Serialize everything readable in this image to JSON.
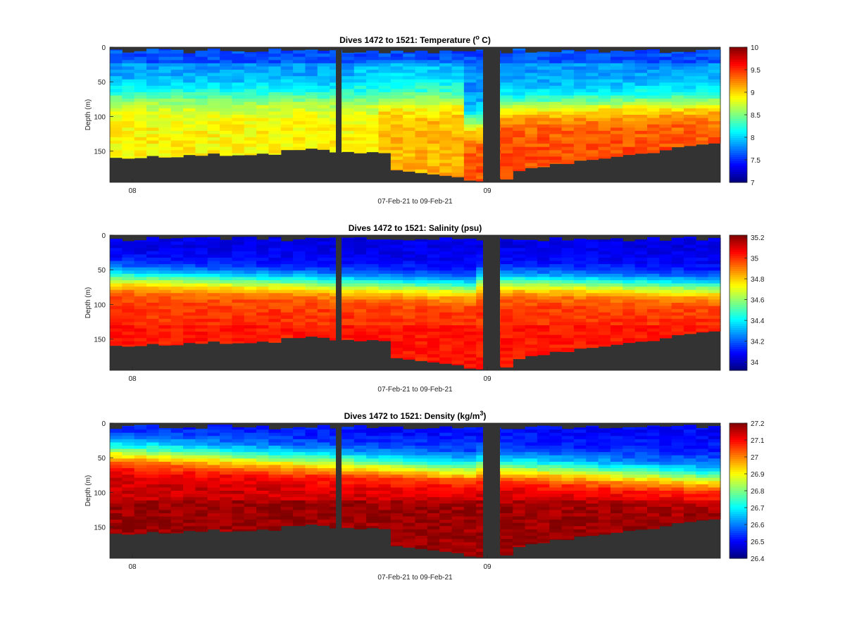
{
  "chart_data": [
    {
      "type": "heatmap",
      "title": "Dives 1472 to 1521: Temperature (",
      "title_sup": "o",
      "title_suffix": " C)",
      "xlabel": "07-Feb-21 to 09-Feb-21",
      "ylabel": "Depth (m)",
      "xtick_labels": [
        "08",
        "09"
      ],
      "yticks": [
        0,
        50,
        100,
        150
      ],
      "ylim": [
        0,
        195
      ],
      "colorbar": {
        "min": 7,
        "max": 10,
        "ticks": [
          "10",
          "9.5",
          "9",
          "8.5",
          "8",
          "7.5",
          "7"
        ]
      },
      "colormap": "jet",
      "no_data_color": "#333333",
      "profile": {
        "surface": 7.8,
        "thermocline_depth_start": 65,
        "thermocline_depth_end": 75,
        "deep": 8.9,
        "deep_second_half": 9.4
      }
    },
    {
      "type": "heatmap",
      "title": "Dives 1472 to 1521: Salinity (psu)",
      "xlabel": "07-Feb-21 to 09-Feb-21",
      "ylabel": "Depth (m)",
      "xtick_labels": [
        "08",
        "09"
      ],
      "yticks": [
        0,
        50,
        100,
        150
      ],
      "ylim": [
        0,
        195
      ],
      "colorbar": {
        "min": 33.92,
        "max": 35.22,
        "ticks": [
          "35.2",
          "35",
          "34.8",
          "34.6",
          "34.4",
          "34.2",
          "34"
        ]
      },
      "colormap": "jet",
      "no_data_color": "#333333",
      "profile": {
        "surface": 34.05,
        "halocline_depth_start": 55,
        "halocline_depth_end": 95,
        "deep": 35.0
      }
    },
    {
      "type": "heatmap",
      "title": "Dives 1472 to 1521: Density (kg/m",
      "title_sup": "3",
      "title_suffix": ")",
      "xlabel": "07-Feb-21 to 09-Feb-21",
      "ylabel": "Depth (m)",
      "xtick_labels": [
        "08",
        "09"
      ],
      "yticks": [
        0,
        50,
        100,
        150
      ],
      "ylim": [
        0,
        195
      ],
      "colorbar": {
        "min": 26.4,
        "max": 27.2,
        "ticks": [
          "27.2",
          "27.1",
          "27",
          "26.9",
          "26.8",
          "26.7",
          "26.6",
          "26.5",
          "26.4"
        ]
      },
      "colormap": "jet",
      "no_data_color": "#333333",
      "profile": {
        "surface": 26.5,
        "pycnocline_depth_start": 45,
        "pycnocline_depth_end": 90,
        "deep": 27.15
      }
    }
  ]
}
